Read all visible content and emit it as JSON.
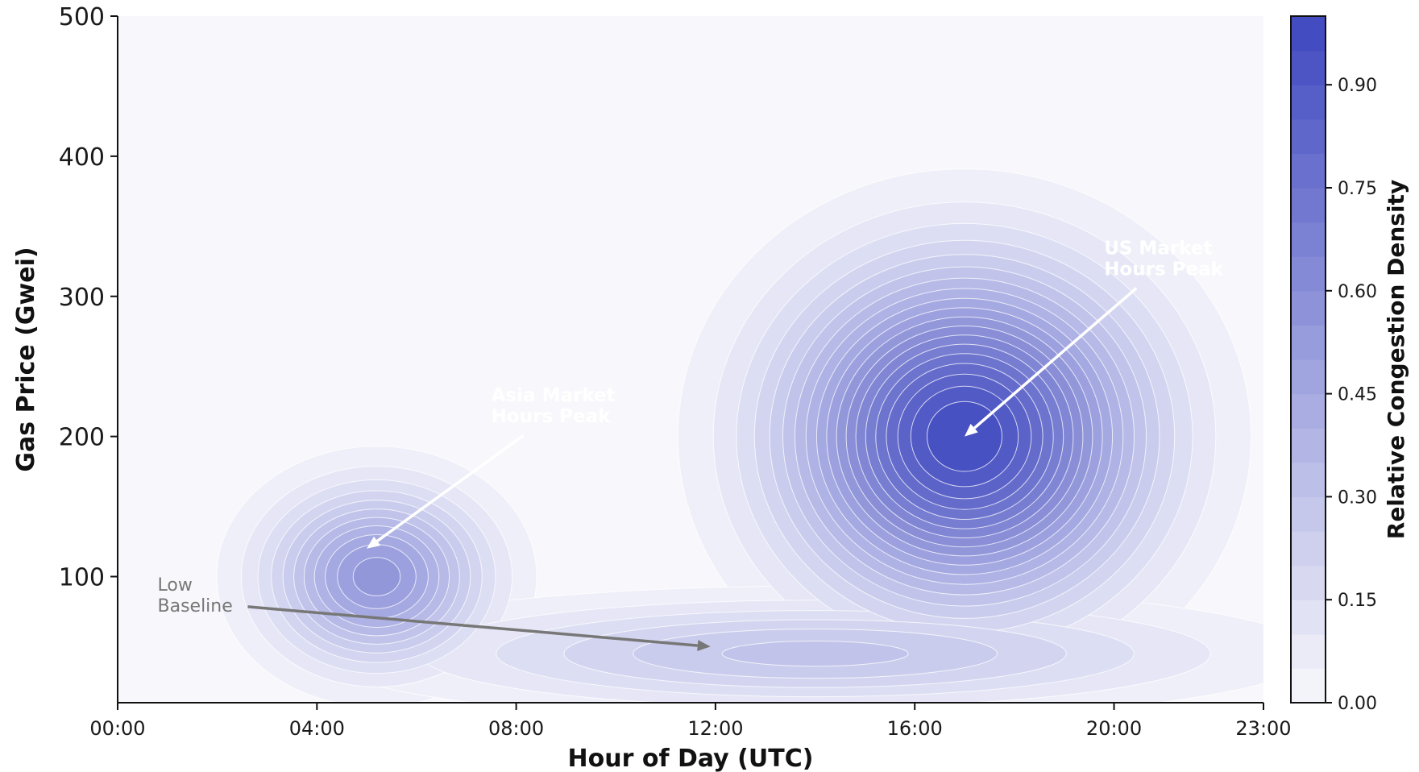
{
  "chart_data": {
    "type": "contour",
    "xlabel": "Hour of Day (UTC)",
    "ylabel": "Gas Price (Gwei)",
    "colorbar_label": "Relative Congestion Density",
    "x_ticks": [
      "00:00",
      "04:00",
      "08:00",
      "12:00",
      "16:00",
      "20:00",
      "23:00"
    ],
    "x_tick_values": [
      0,
      4,
      8,
      12,
      16,
      20,
      23
    ],
    "y_ticks": [
      "100",
      "200",
      "300",
      "400",
      "500"
    ],
    "y_tick_values": [
      100,
      200,
      300,
      400,
      500
    ],
    "xlim": [
      0,
      23
    ],
    "ylim": [
      10,
      500
    ],
    "colorbar_ticks": [
      "0.00",
      "0.15",
      "0.30",
      "0.45",
      "0.60",
      "0.75",
      "0.90"
    ],
    "colorbar_tick_values": [
      0.0,
      0.15,
      0.3,
      0.45,
      0.6,
      0.75,
      0.9
    ],
    "colorbar_range": [
      0,
      1
    ],
    "levels": 20,
    "color_low": "#f8f8fc",
    "color_high": "#3f48bf",
    "components": [
      {
        "x": 17,
        "y": 200,
        "peak": 1.0
      },
      {
        "x": 5.2,
        "y": 100,
        "peak": 0.58
      },
      {
        "x": 14,
        "y": 45,
        "peak": 0.32
      }
    ],
    "annotations": [
      {
        "text": [
          "Asia Market",
          "Hours Peak"
        ],
        "point": [
          5,
          120
        ],
        "text_at": [
          7.5,
          225
        ],
        "color": "#ffffff"
      },
      {
        "text": [
          "US Market",
          "Hours Peak"
        ],
        "point": [
          17,
          200
        ],
        "text_at": [
          19.8,
          330
        ],
        "color": "#ffffff"
      },
      {
        "text": [
          "Low",
          "Baseline"
        ],
        "point": [
          11.9,
          50
        ],
        "text_at": [
          0.8,
          90
        ],
        "color": "#777777"
      }
    ]
  }
}
